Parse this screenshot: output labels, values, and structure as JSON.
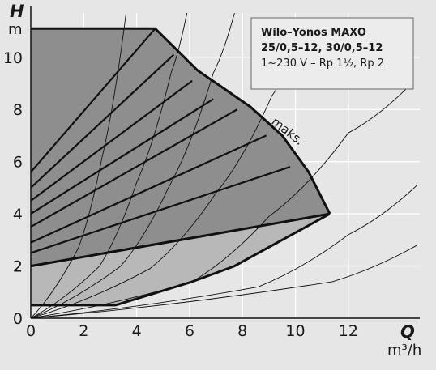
{
  "chart_data": {
    "type": "line",
    "title": "",
    "legend": {
      "line1": "Wilo–Yonos MAXO",
      "line2": "25/0,5–12, 30/0,5–12",
      "line3": "1~230 V – Rp 1½, Rp 2"
    },
    "y_axis": {
      "symbol": "H",
      "unit": "m",
      "ticks": [
        0,
        2,
        4,
        6,
        8,
        10
      ],
      "ylim": [
        0,
        11.7
      ],
      "grid": true
    },
    "x_axis": {
      "symbol": "Q",
      "unit": "m³/h",
      "ticks": [
        0,
        2,
        4,
        6,
        8,
        10,
        12
      ],
      "xlim": [
        0,
        14.7
      ],
      "grid": true
    },
    "max_label": "maks.",
    "series": [
      {
        "role": "max-curve",
        "points": [
          [
            0,
            11.1
          ],
          [
            4.7,
            11.1
          ],
          [
            5.5,
            10.3
          ],
          [
            6.3,
            9.5
          ],
          [
            7.3,
            8.8
          ],
          [
            8.3,
            8.1
          ],
          [
            9.5,
            7.0
          ],
          [
            10.5,
            5.6
          ],
          [
            11.3,
            4.0
          ]
        ]
      },
      {
        "role": "curve-from-5.6",
        "points": [
          [
            0,
            5.6
          ],
          [
            4.7,
            11.1
          ]
        ]
      },
      {
        "role": "curve-from-5.0",
        "points": [
          [
            0,
            5.0
          ],
          [
            5.4,
            10.1
          ]
        ]
      },
      {
        "role": "curve-from-4.5",
        "points": [
          [
            0,
            4.5
          ],
          [
            6.1,
            9.1
          ]
        ]
      },
      {
        "role": "curve-from-4.0",
        "points": [
          [
            0,
            4.0
          ],
          [
            6.9,
            8.4
          ]
        ]
      },
      {
        "role": "curve-from-3.5",
        "points": [
          [
            0,
            3.5
          ],
          [
            7.8,
            8.0
          ]
        ]
      },
      {
        "role": "curve-from-2.9",
        "points": [
          [
            0,
            2.9
          ],
          [
            8.9,
            7.0
          ]
        ]
      },
      {
        "role": "curve-from-2.5",
        "points": [
          [
            0,
            2.5
          ],
          [
            9.8,
            5.8
          ]
        ]
      },
      {
        "role": "min-curve",
        "points": [
          [
            0,
            2.0
          ],
          [
            11.3,
            4.0
          ]
        ]
      },
      {
        "role": "lower-boundary",
        "points": [
          [
            0,
            0.5
          ],
          [
            3.2,
            0.5
          ],
          [
            4.5,
            0.9
          ],
          [
            6.1,
            1.4
          ],
          [
            7.7,
            2.0
          ],
          [
            9.5,
            3.0
          ],
          [
            11.3,
            4.0
          ]
        ]
      }
    ],
    "system_curves": [
      {
        "points": [
          [
            0,
            0
          ],
          [
            1.8,
            2.7
          ],
          [
            2.7,
            6.2
          ],
          [
            3.6,
            11.7
          ]
        ]
      },
      {
        "points": [
          [
            0,
            0
          ],
          [
            2.6,
            2.0
          ],
          [
            4.0,
            5.2
          ],
          [
            5.3,
            9.4
          ],
          [
            5.9,
            11.7
          ]
        ]
      },
      {
        "points": [
          [
            0,
            0
          ],
          [
            3.4,
            2.0
          ],
          [
            5.2,
            5.0
          ],
          [
            6.9,
            9.4
          ],
          [
            7.7,
            11.7
          ]
        ]
      },
      {
        "points": [
          [
            0,
            0
          ],
          [
            4.5,
            1.9
          ],
          [
            7.0,
            4.8
          ],
          [
            9.1,
            8.5
          ],
          [
            10.4,
            11.2
          ]
        ]
      },
      {
        "points": [
          [
            0,
            0
          ],
          [
            6.1,
            1.4
          ],
          [
            9.0,
            3.9
          ],
          [
            12.0,
            7.1
          ],
          [
            14.3,
            8.9
          ]
        ]
      },
      {
        "points": [
          [
            0,
            0
          ],
          [
            8.6,
            1.2
          ],
          [
            12.0,
            3.2
          ],
          [
            14.6,
            5.1
          ]
        ]
      },
      {
        "points": [
          [
            0,
            0
          ],
          [
            11.4,
            1.4
          ],
          [
            14.6,
            2.8
          ]
        ]
      }
    ],
    "colors": {
      "background": "#e6e6e6",
      "field_light": "#b8b8b8",
      "field_dark": "#8e8e8e",
      "grid": "#ffffff",
      "curve": "#111111",
      "legend_box": "#ececec"
    }
  }
}
